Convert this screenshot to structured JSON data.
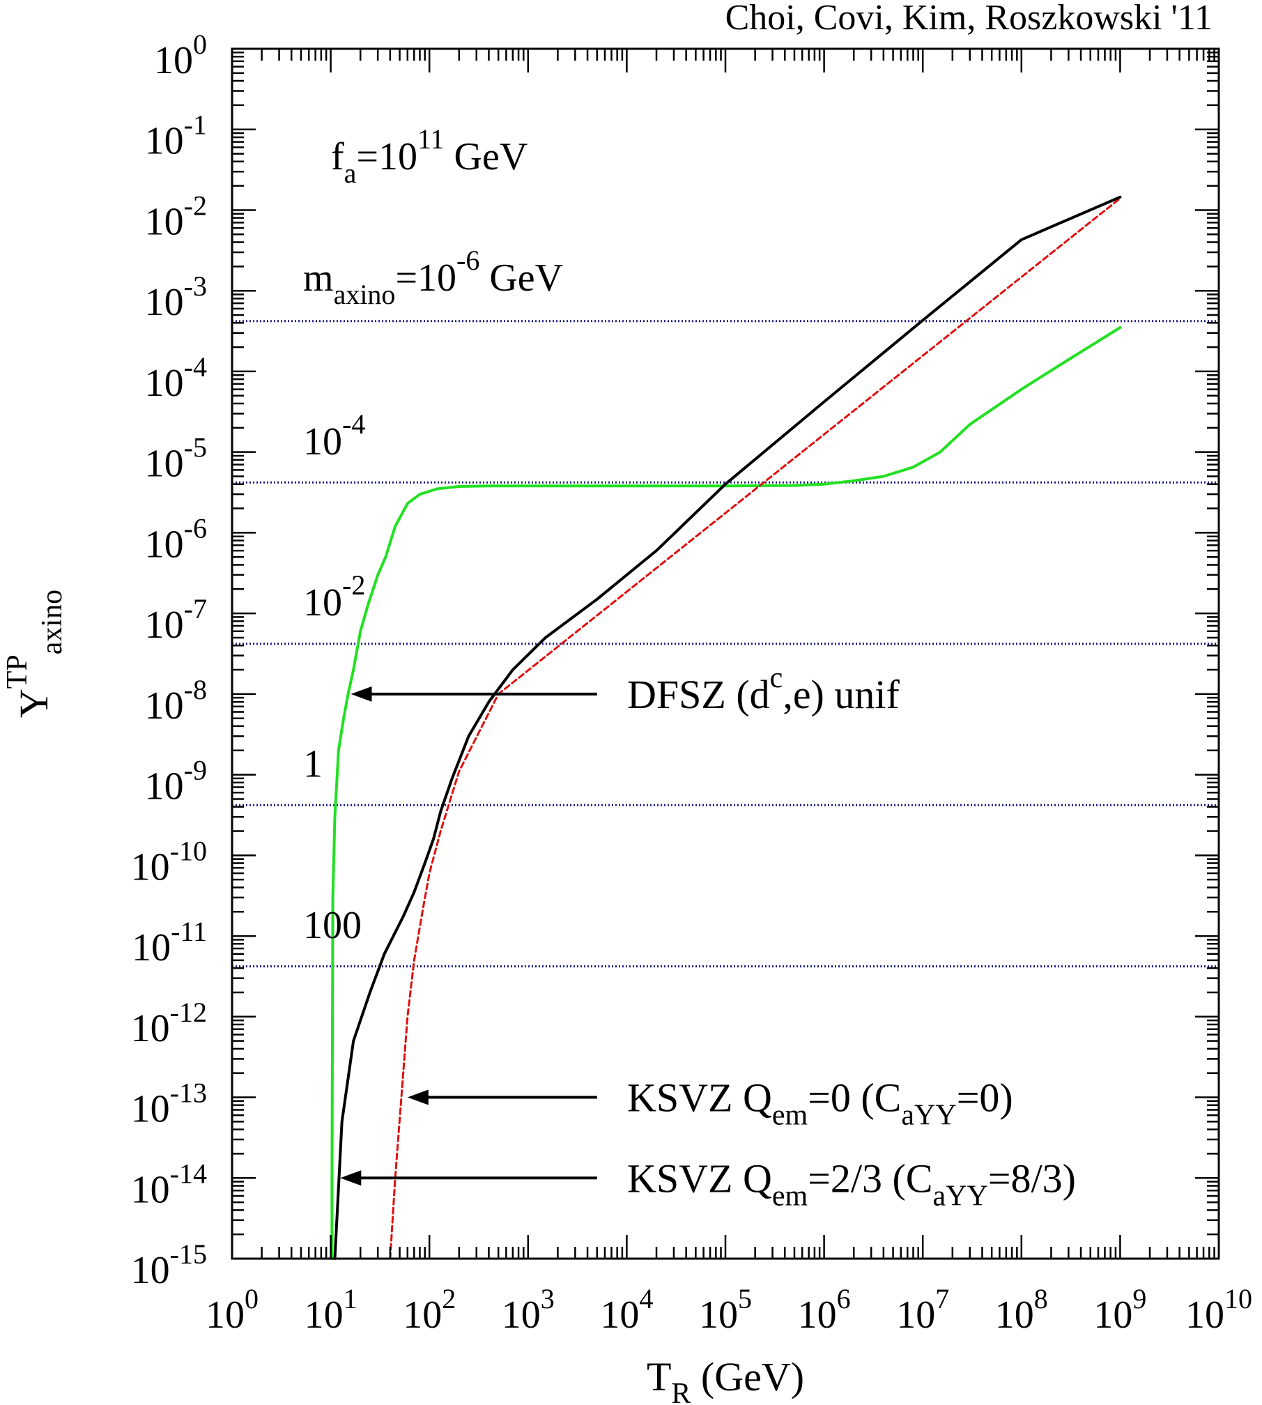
{
  "chart_data": {
    "type": "line",
    "x_scale": "log",
    "y_scale": "log",
    "xlim": [
      1,
      10000000000
    ],
    "ylim": [
      1e-15,
      1
    ],
    "credit": "Choi, Covi, Kim, Roszkowski '11",
    "xlabel": {
      "base": "T",
      "sub": "R",
      "rest": " (GeV)"
    },
    "ylabel": {
      "base": "Y",
      "sup": "TP",
      "sub": "axino"
    },
    "x_ticks": [
      {
        "base": "10",
        "exp": "0",
        "value": 1
      },
      {
        "base": "10",
        "exp": "1",
        "value": 10
      },
      {
        "base": "10",
        "exp": "2",
        "value": 100
      },
      {
        "base": "10",
        "exp": "3",
        "value": 1000
      },
      {
        "base": "10",
        "exp": "4",
        "value": 10000
      },
      {
        "base": "10",
        "exp": "5",
        "value": 100000
      },
      {
        "base": "10",
        "exp": "6",
        "value": 1000000
      },
      {
        "base": "10",
        "exp": "7",
        "value": 10000000
      },
      {
        "base": "10",
        "exp": "8",
        "value": 100000000
      },
      {
        "base": "10",
        "exp": "9",
        "value": 1000000000
      },
      {
        "base": "10",
        "exp": "10",
        "value": 10000000000
      }
    ],
    "y_ticks": [
      {
        "base": "10",
        "exp": "0",
        "value": 1
      },
      {
        "base": "10",
        "exp": "-1",
        "value": 0.1
      },
      {
        "base": "10",
        "exp": "-2",
        "value": 0.01
      },
      {
        "base": "10",
        "exp": "-3",
        "value": 0.001
      },
      {
        "base": "10",
        "exp": "-4",
        "value": 0.0001
      },
      {
        "base": "10",
        "exp": "-5",
        "value": 1e-05
      },
      {
        "base": "10",
        "exp": "-6",
        "value": 1e-06
      },
      {
        "base": "10",
        "exp": "-7",
        "value": 1e-07
      },
      {
        "base": "10",
        "exp": "-8",
        "value": 1e-08
      },
      {
        "base": "10",
        "exp": "-9",
        "value": 1e-09
      },
      {
        "base": "10",
        "exp": "-10",
        "value": 1e-10
      },
      {
        "base": "10",
        "exp": "-11",
        "value": 1e-11
      },
      {
        "base": "10",
        "exp": "-12",
        "value": 1e-12
      },
      {
        "base": "10",
        "exp": "-13",
        "value": 1e-13
      },
      {
        "base": "10",
        "exp": "-14",
        "value": 1e-14
      },
      {
        "base": "10",
        "exp": "-15",
        "value": 1e-15
      }
    ],
    "annotation_fa": {
      "pre": "f",
      "sub": "a",
      "mid": "=10",
      "sup": "11",
      "post": " GeV"
    },
    "mass_lines": [
      {
        "y": 0.00042,
        "label": {
          "pre": "m",
          "sub": "axino",
          "mid": "=10",
          "sup": "-6",
          "post": " GeV"
        },
        "label_y": 0.0015
      },
      {
        "y": 4.2e-06,
        "label": {
          "pre": "10",
          "sup": "-4"
        },
        "label_y": 1.4e-05
      },
      {
        "y": 4.2e-08,
        "label": {
          "pre": "10",
          "sup": "-2"
        },
        "label_y": 1.4e-07
      },
      {
        "y": 4.2e-10,
        "label": {
          "pre": "1"
        },
        "label_y": 1.4e-09
      },
      {
        "y": 4.2e-12,
        "label": {
          "pre": "100"
        },
        "label_y": 1.4e-11
      }
    ],
    "series": [
      {
        "name": "DFSZ (dc,e) unif",
        "color": "#22e022",
        "style": "solid",
        "x": [
          10.3,
          10.3,
          10.5,
          11,
          12,
          13.5,
          15,
          17,
          20,
          24,
          30,
          36,
          45,
          60,
          80,
          120,
          200,
          400,
          1000,
          10000,
          100000,
          500000,
          1000000,
          2000000,
          4000000,
          8000000,
          15000000,
          30000000,
          100000000,
          300000000,
          1000000000
        ],
        "y": [
          1e-15,
          1e-14,
          3e-11,
          3e-10,
          2e-09,
          5e-09,
          1e-08,
          2e-08,
          6e-08,
          1.3e-07,
          3e-07,
          5e-07,
          1.2e-06,
          2.3e-06,
          3e-06,
          3.5e-06,
          3.75e-06,
          3.8e-06,
          3.8e-06,
          3.8e-06,
          3.8e-06,
          3.85e-06,
          4e-06,
          4.4e-06,
          5e-06,
          6.5e-06,
          1e-05,
          2.2e-05,
          6e-05,
          0.00014,
          0.00035
        ]
      },
      {
        "name": "KSVZ Qem=0 (CaYY=0)",
        "color": "#e01010",
        "style": "dashed",
        "x": [
          40,
          45,
          52,
          60,
          70,
          85,
          100,
          130,
          200,
          500,
          1000000000
        ],
        "y": [
          1e-15,
          1e-14,
          1e-13,
          1e-12,
          5e-12,
          2e-11,
          6e-11,
          2e-10,
          1.1e-09,
          1e-08,
          0.014
        ]
      },
      {
        "name": "KSVZ Qem=2/3 (CaYY=8/3)",
        "color": "#000000",
        "style": "solid",
        "x": [
          11,
          13,
          17,
          25,
          35,
          55,
          70,
          90,
          110,
          130,
          170,
          250,
          400,
          700,
          1500,
          5000,
          20000,
          100000,
          1000000,
          10000000,
          100000000,
          1000000000
        ],
        "y": [
          1e-15,
          5e-14,
          5e-13,
          2e-12,
          6e-12,
          1.8e-11,
          3.5e-11,
          8e-11,
          1.6e-10,
          3.5e-10,
          9e-10,
          3e-09,
          8e-09,
          2e-08,
          5e-08,
          1.5e-07,
          6e-07,
          4e-06,
          4.2e-05,
          0.00043,
          0.0043,
          0.0145
        ]
      }
    ],
    "arrows": [
      {
        "from": [
          5000,
          1e-08
        ],
        "to": [
          16,
          1e-08
        ],
        "label": {
          "pre": "DFSZ (d",
          "sup": "c",
          "post": ",e) unif"
        }
      },
      {
        "from": [
          5000,
          1e-13
        ],
        "to": [
          60,
          1e-13
        ],
        "label": {
          "pre": "KSVZ Q",
          "sub": "em",
          "mid": "=0 (C",
          "sub2": "aYY",
          "post": "=0)"
        }
      },
      {
        "from": [
          5000,
          1e-14
        ],
        "to": [
          12.5,
          1e-14
        ],
        "label": {
          "pre": "KSVZ Q",
          "sub": "em",
          "mid": "=2/3 (C",
          "sub2": "aYY",
          "post": "=8/3)"
        }
      }
    ]
  }
}
